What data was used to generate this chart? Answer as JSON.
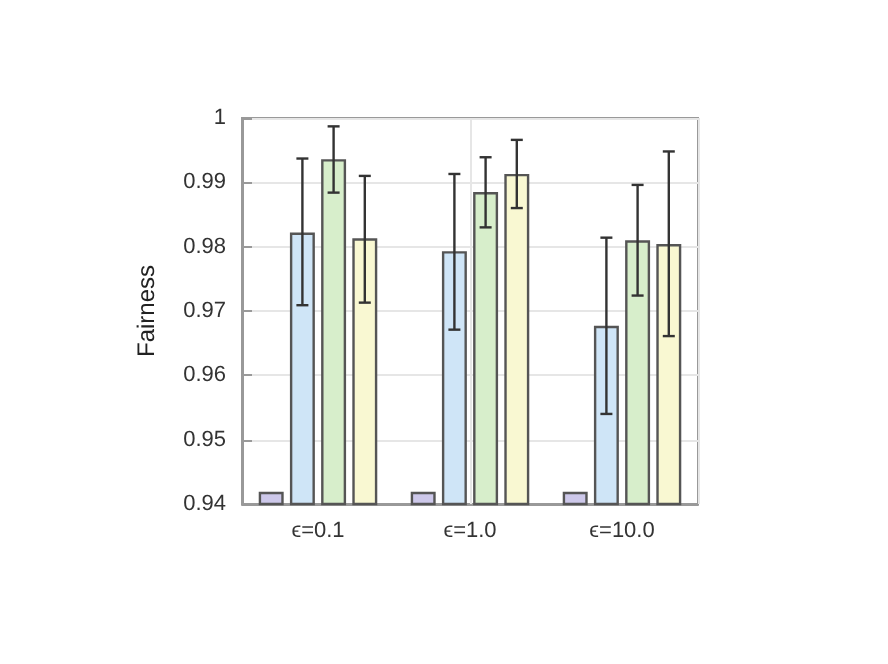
{
  "chart_data": {
    "type": "bar",
    "ylabel": "Fairness",
    "categories": [
      "ϵ=0.1",
      "ϵ=1.0",
      "ϵ=10.0"
    ],
    "series": [
      {
        "color": "#cdc8ea",
        "values": [
          0.9419,
          0.9419,
          0.9419
        ]
      },
      {
        "color": "#cfe5f7",
        "values": [
          0.9822,
          0.9793,
          0.9677
        ],
        "errors": [
          [
            0.9709,
            0.9937
          ],
          [
            0.9671,
            0.9913
          ],
          [
            0.954,
            0.9814
          ]
        ]
      },
      {
        "color": "#d7eecb",
        "values": [
          0.9936,
          0.9885,
          0.981
        ],
        "errors": [
          [
            0.9884,
            0.9987
          ],
          [
            0.983,
            0.9939
          ],
          [
            0.9724,
            0.9896
          ]
        ]
      },
      {
        "color": "#f9f8d2",
        "values": [
          0.9813,
          0.9913,
          0.9804
        ],
        "errors": [
          [
            0.9713,
            0.991
          ],
          [
            0.986,
            0.9966
          ],
          [
            0.9661,
            0.9948
          ]
        ]
      }
    ],
    "ylim": [
      0.94,
      1
    ],
    "yticks": [
      0.94,
      0.95,
      0.96,
      0.97,
      0.98,
      0.99,
      1
    ],
    "grid": true
  }
}
